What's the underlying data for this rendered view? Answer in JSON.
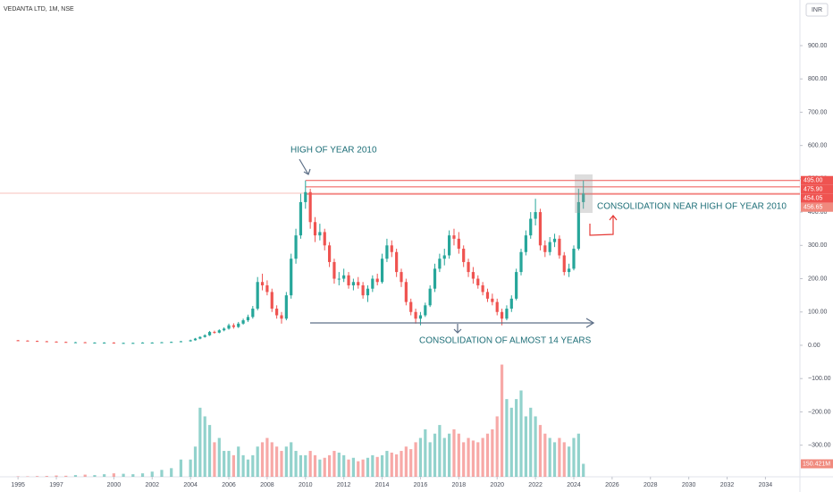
{
  "chart_data": {
    "type": "candlestick",
    "header": "VEDANTA LTD, 1M, NSE",
    "currency": "INR",
    "annotations": [
      "HIGH OF YEAR 2010",
      "CONSOLIDATION OF ALMOST 14 YEARS",
      "CONSOLIDATION NEAR HIGH OF YEAR 2010"
    ],
    "up_color": "#26a69a",
    "down_color": "#ef5350",
    "x": [
      1995,
      1995.5,
      1996,
      1996.5,
      1997,
      1997.5,
      1998,
      1998.5,
      1999,
      1999.5,
      2000,
      2000.5,
      2001,
      2001.5,
      2002,
      2002.5,
      2003,
      2003.5,
      2004,
      2004.25,
      2004.5,
      2004.75,
      2005,
      2005.25,
      2005.5,
      2005.75,
      2006,
      2006.25,
      2006.5,
      2006.75,
      2007,
      2007.25,
      2007.5,
      2007.75,
      2008,
      2008.25,
      2008.5,
      2008.75,
      2009,
      2009.25,
      2009.5,
      2009.75,
      2010,
      2010.25,
      2010.5,
      2010.75,
      2011,
      2011.25,
      2011.5,
      2011.75,
      2012,
      2012.25,
      2012.5,
      2012.75,
      2013,
      2013.25,
      2013.5,
      2013.75,
      2014,
      2014.25,
      2014.5,
      2014.75,
      2015,
      2015.25,
      2015.5,
      2015.75,
      2016,
      2016.25,
      2016.5,
      2016.75,
      2017,
      2017.25,
      2017.5,
      2017.75,
      2018,
      2018.25,
      2018.5,
      2018.75,
      2019,
      2019.25,
      2019.5,
      2019.75,
      2020,
      2020.25,
      2020.5,
      2020.75,
      2021,
      2021.25,
      2021.5,
      2021.75,
      2022,
      2022.25,
      2022.5,
      2022.75,
      2023,
      2023.25,
      2023.5,
      2023.75,
      2024,
      2024.25,
      2024.5
    ],
    "open": [
      15,
      14,
      13,
      12,
      11,
      10,
      9,
      9,
      8,
      8,
      8,
      7,
      7,
      7,
      8,
      8,
      9,
      10,
      12,
      15,
      20,
      25,
      30,
      40,
      38,
      45,
      50,
      60,
      55,
      65,
      75,
      85,
      110,
      190,
      180,
      160,
      110,
      90,
      80,
      150,
      260,
      330,
      430,
      460,
      370,
      330,
      340,
      300,
      250,
      200,
      200,
      210,
      180,
      190,
      180,
      150,
      170,
      200,
      190,
      260,
      300,
      280,
      220,
      190,
      130,
      100,
      80,
      90,
      120,
      170,
      230,
      260,
      270,
      330,
      320,
      290,
      250,
      220,
      200,
      180,
      160,
      140,
      130,
      100,
      80,
      110,
      140,
      220,
      280,
      330,
      380,
      400,
      300,
      280,
      310,
      320,
      270,
      220,
      230,
      290,
      430
    ],
    "high": [
      16,
      15,
      14,
      13,
      12,
      11,
      10,
      10,
      9,
      9,
      9,
      8,
      8,
      9,
      9,
      10,
      11,
      13,
      17,
      22,
      27,
      33,
      43,
      44,
      48,
      54,
      65,
      66,
      70,
      80,
      92,
      118,
      205,
      215,
      195,
      170,
      120,
      100,
      160,
      275,
      350,
      455,
      495,
      470,
      385,
      365,
      350,
      310,
      260,
      220,
      230,
      220,
      200,
      205,
      190,
      180,
      210,
      215,
      275,
      320,
      315,
      290,
      230,
      200,
      140,
      110,
      100,
      128,
      180,
      245,
      275,
      290,
      345,
      350,
      340,
      300,
      260,
      235,
      210,
      190,
      170,
      155,
      140,
      110,
      120,
      150,
      230,
      290,
      345,
      400,
      440,
      410,
      315,
      325,
      335,
      330,
      280,
      245,
      300,
      470,
      495
    ],
    "low": [
      13,
      12,
      11,
      10,
      9,
      8,
      8,
      7,
      7,
      7,
      6,
      6,
      6,
      6,
      7,
      7,
      8,
      9,
      11,
      14,
      18,
      23,
      28,
      35,
      36,
      42,
      47,
      50,
      52,
      62,
      70,
      80,
      105,
      165,
      150,
      100,
      80,
      65,
      75,
      140,
      245,
      320,
      410,
      350,
      310,
      315,
      285,
      235,
      185,
      180,
      190,
      170,
      165,
      170,
      140,
      130,
      160,
      180,
      185,
      250,
      265,
      205,
      175,
      120,
      90,
      65,
      60,
      85,
      115,
      160,
      220,
      240,
      260,
      300,
      275,
      235,
      205,
      185,
      170,
      150,
      130,
      120,
      90,
      60,
      75,
      100,
      135,
      210,
      270,
      320,
      360,
      285,
      265,
      270,
      295,
      260,
      210,
      205,
      225,
      285,
      410
    ],
    "close": [
      14,
      13,
      12,
      11,
      10,
      9,
      9,
      8,
      8,
      8,
      7,
      7,
      7,
      8,
      8,
      9,
      10,
      12,
      15,
      20,
      25,
      30,
      40,
      38,
      45,
      50,
      60,
      55,
      65,
      75,
      85,
      110,
      190,
      180,
      160,
      110,
      90,
      80,
      150,
      260,
      330,
      430,
      460,
      370,
      330,
      340,
      300,
      250,
      200,
      200,
      210,
      180,
      190,
      180,
      150,
      170,
      200,
      190,
      260,
      300,
      280,
      220,
      190,
      130,
      100,
      80,
      90,
      120,
      170,
      230,
      260,
      270,
      330,
      320,
      290,
      250,
      220,
      200,
      180,
      160,
      140,
      130,
      100,
      80,
      110,
      140,
      220,
      280,
      330,
      380,
      400,
      300,
      280,
      310,
      320,
      270,
      220,
      230,
      290,
      430,
      456
    ],
    "volume": [
      5,
      5,
      8,
      10,
      15,
      12,
      20,
      25,
      20,
      30,
      40,
      35,
      30,
      40,
      60,
      80,
      100,
      200,
      200,
      350,
      800,
      700,
      600,
      400,
      450,
      300,
      300,
      250,
      350,
      250,
      200,
      250,
      350,
      400,
      450,
      400,
      350,
      300,
      350,
      400,
      300,
      250,
      250,
      300,
      250,
      200,
      220,
      250,
      300,
      280,
      250,
      200,
      220,
      180,
      200,
      220,
      250,
      230,
      250,
      300,
      280,
      260,
      300,
      350,
      320,
      400,
      450,
      550,
      400,
      500,
      600,
      450,
      500,
      550,
      500,
      400,
      450,
      420,
      400,
      450,
      500,
      550,
      700,
      1300,
      900,
      800,
      900,
      1000,
      700,
      800,
      700,
      600,
      500,
      450,
      400,
      450,
      400,
      350,
      450,
      500,
      150.421
    ],
    "last_volume_label": "150.421M",
    "vlim": [
      0,
      2000
    ],
    "xlim": [
      1994.06,
      2035.8
    ],
    "xticks": [
      1995,
      1997,
      2000,
      2002,
      2004,
      2006,
      2008,
      2010,
      2012,
      2014,
      2016,
      2018,
      2020,
      2022,
      2024,
      2026,
      2028,
      2030,
      2032,
      2034
    ],
    "ylim": [
      -395,
      1037
    ],
    "yticks": [
      {
        "value": 900,
        "label": "900.00"
      },
      {
        "value": 800,
        "label": "800.00"
      },
      {
        "value": 700,
        "label": "700.00"
      },
      {
        "value": 600,
        "label": "600.00"
      },
      {
        "value": 500,
        "label": "500.00"
      },
      {
        "value": 400,
        "label": "400.00"
      },
      {
        "value": 300,
        "label": "300.00"
      },
      {
        "value": 200,
        "label": "200.00"
      },
      {
        "value": 100,
        "label": "100.00"
      },
      {
        "value": 0,
        "label": "0.00"
      },
      {
        "value": -100,
        "label": "−100.00"
      },
      {
        "value": -200,
        "label": "−200.00"
      },
      {
        "value": -300,
        "label": "−300.00"
      }
    ],
    "price_labels": [
      {
        "value": 495,
        "label": "495.00",
        "color": "#ef5350"
      },
      {
        "value": 475.9,
        "label": "475.90",
        "color": "#ef5350"
      },
      {
        "value": 454.05,
        "label": "454.05",
        "color": "#ef5350"
      },
      {
        "value": 456.65,
        "label": "456.65",
        "color": "#f08a7e"
      }
    ]
  }
}
